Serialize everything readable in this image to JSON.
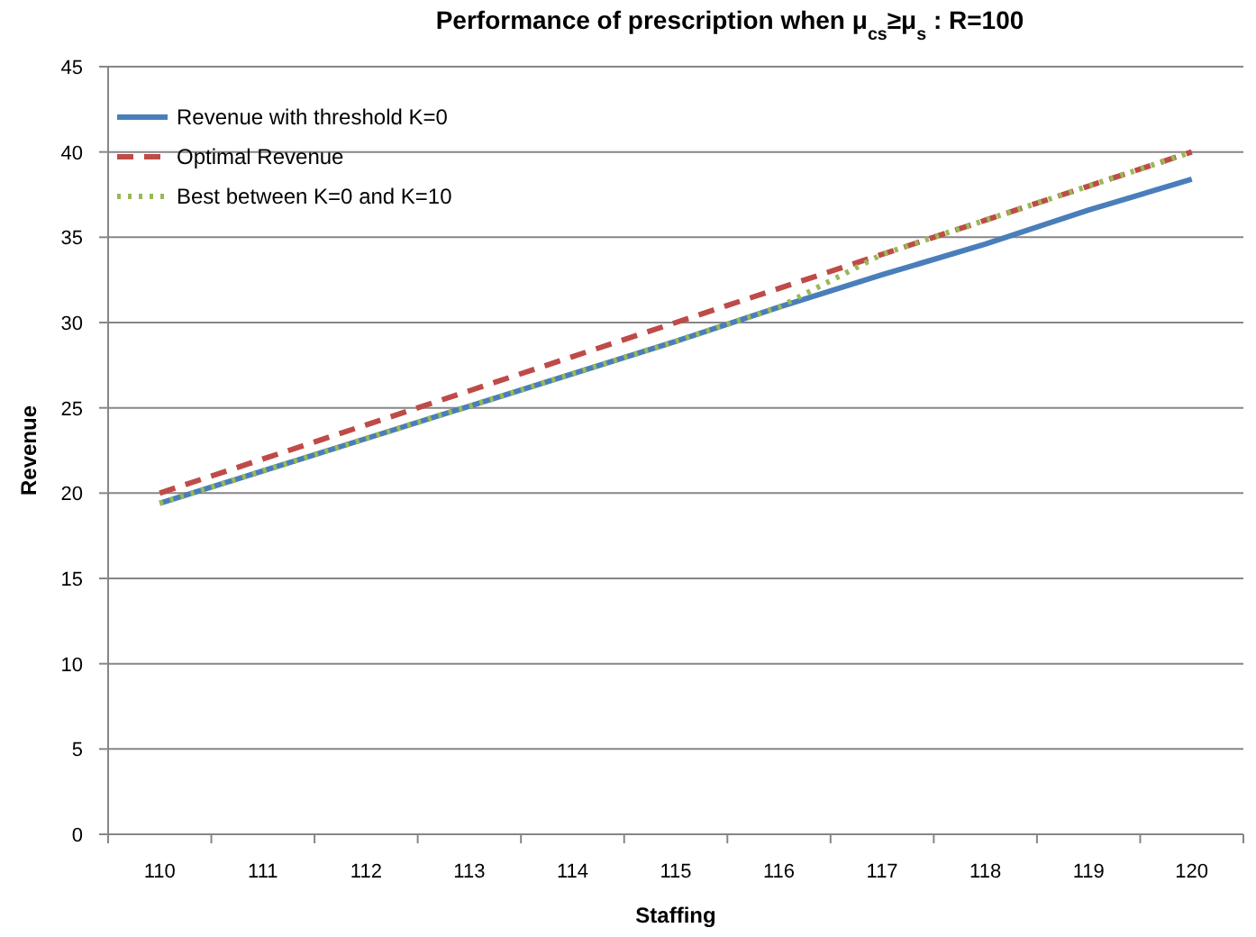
{
  "chart_data": {
    "type": "line",
    "title": "Performance of prescription when μ$_{cs}$≥μ$_{s}$ : R=100",
    "xlabel": "Staffing",
    "ylabel": "Revenue",
    "categories": [
      "110",
      "111",
      "112",
      "113",
      "114",
      "115",
      "116",
      "117",
      "118",
      "119",
      "120"
    ],
    "series": [
      {
        "name": "Revenue with threshold K=0",
        "color": "#4a7ebb",
        "line_style": "solid",
        "values": [
          19.4,
          21.3,
          23.2,
          25.1,
          27.0,
          28.9,
          30.9,
          32.8,
          34.6,
          36.6,
          38.4
        ]
      },
      {
        "name": "Optimal Revenue",
        "color": "#be4b48",
        "line_style": "dashed",
        "values": [
          20,
          22,
          24,
          26,
          28,
          30,
          32,
          34,
          36,
          38,
          40
        ]
      },
      {
        "name": "Best between K=0 and K=10",
        "color": "#98b954",
        "line_style": "dotted",
        "values": [
          19.4,
          21.3,
          23.2,
          25.1,
          27.0,
          28.9,
          30.9,
          34,
          36,
          38,
          40
        ]
      }
    ],
    "ylim": [
      0,
      45
    ],
    "yticks": [
      0,
      5,
      10,
      15,
      20,
      25,
      30,
      35,
      40,
      45
    ],
    "grid": "y",
    "legend": "top left",
    "marker": "none"
  }
}
